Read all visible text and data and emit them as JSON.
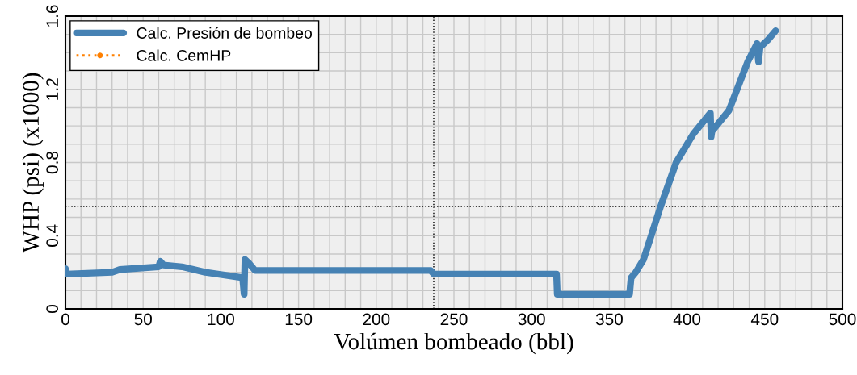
{
  "chart_data": {
    "type": "line",
    "xlabel": "Volúmen bombeado (bbl)",
    "ylabel": "WHP (psi) (x1000)",
    "xlim": [
      0,
      500
    ],
    "ylim": [
      0,
      1.6
    ],
    "xticks": [
      0,
      {
        "value": 10,
        "label": null
      },
      {
        "value": 20,
        "label": null
      },
      {
        "value": 30,
        "label": null
      },
      {
        "value": 40,
        "label": null
      },
      50,
      {
        "value": 60,
        "label": null
      },
      {
        "value": 70,
        "label": null
      },
      {
        "value": 80,
        "label": null
      },
      {
        "value": 90,
        "label": null
      },
      100,
      {
        "value": 110,
        "label": null
      },
      {
        "value": 120,
        "label": null
      },
      {
        "value": 130,
        "label": null
      },
      {
        "value": 140,
        "label": null
      },
      150,
      {
        "value": 160,
        "label": null
      },
      {
        "value": 170,
        "label": null
      },
      {
        "value": 180,
        "label": null
      },
      {
        "value": 190,
        "label": null
      },
      200,
      {
        "value": 210,
        "label": null
      },
      {
        "value": 220,
        "label": null
      },
      {
        "value": 230,
        "label": null
      },
      {
        "value": 240,
        "label": null
      },
      250,
      {
        "value": 260,
        "label": null
      },
      {
        "value": 270,
        "label": null
      },
      {
        "value": 280,
        "label": null
      },
      {
        "value": 290,
        "label": null
      },
      300,
      {
        "value": 310,
        "label": null
      },
      {
        "value": 320,
        "label": null
      },
      {
        "value": 330,
        "label": null
      },
      {
        "value": 340,
        "label": null
      },
      350,
      {
        "value": 360,
        "label": null
      },
      {
        "value": 370,
        "label": null
      },
      {
        "value": 380,
        "label": null
      },
      {
        "value": 390,
        "label": null
      },
      400,
      {
        "value": 410,
        "label": null
      },
      {
        "value": 420,
        "label": null
      },
      {
        "value": 430,
        "label": null
      },
      {
        "value": 440,
        "label": null
      },
      450,
      {
        "value": 460,
        "label": null
      },
      {
        "value": 470,
        "label": null
      },
      {
        "value": 480,
        "label": null
      },
      {
        "value": 490,
        "label": null
      },
      500
    ],
    "yticks": [
      0,
      {
        "value": 0.1,
        "label": null
      },
      {
        "value": 0.2,
        "label": null
      },
      {
        "value": 0.3,
        "label": null
      },
      0.4,
      {
        "value": 0.5,
        "label": null
      },
      {
        "value": 0.6,
        "label": null
      },
      {
        "value": 0.7,
        "label": null
      },
      0.8,
      {
        "value": 0.9,
        "label": null
      },
      {
        "value": 1.0,
        "label": null
      },
      {
        "value": 1.1,
        "label": null
      },
      1.2,
      {
        "value": 1.3,
        "label": null
      },
      {
        "value": 1.4,
        "label": null
      },
      {
        "value": 1.5,
        "label": null
      },
      1.6
    ],
    "grid": true,
    "legend": "top left",
    "series": [
      {
        "name": "Calc. Presión de bombeo",
        "color": "#4682b4",
        "line_style": "solid",
        "x": [
          0,
          1,
          30,
          35,
          60,
          61,
          63,
          75,
          90,
          114,
          115,
          115.5,
          118,
          122,
          235,
          237,
          316,
          316.5,
          363,
          364,
          367,
          372,
          383,
          393,
          404,
          415,
          415.5,
          416,
          427,
          439,
          445,
          446,
          447,
          452,
          457
        ],
        "values": [
          0.22,
          0.19,
          0.2,
          0.215,
          0.23,
          0.26,
          0.24,
          0.23,
          0.2,
          0.17,
          0.08,
          0.27,
          0.25,
          0.21,
          0.21,
          0.19,
          0.19,
          0.08,
          0.08,
          0.17,
          0.2,
          0.27,
          0.56,
          0.8,
          0.956,
          1.07,
          0.94,
          0.97,
          1.085,
          1.35,
          1.45,
          1.35,
          1.43,
          1.47,
          1.52
        ]
      },
      {
        "name": "Calc. CemHP",
        "color": "#ff8000",
        "line_style": "dotted",
        "marker": "circle"
      }
    ],
    "ref_lines": [
      {
        "axis": "x",
        "value": 237,
        "color": "#000000",
        "line_style": "dotted"
      },
      {
        "axis": "y",
        "value": 0.56,
        "color": "#000000",
        "line_style": "dotted"
      }
    ]
  }
}
